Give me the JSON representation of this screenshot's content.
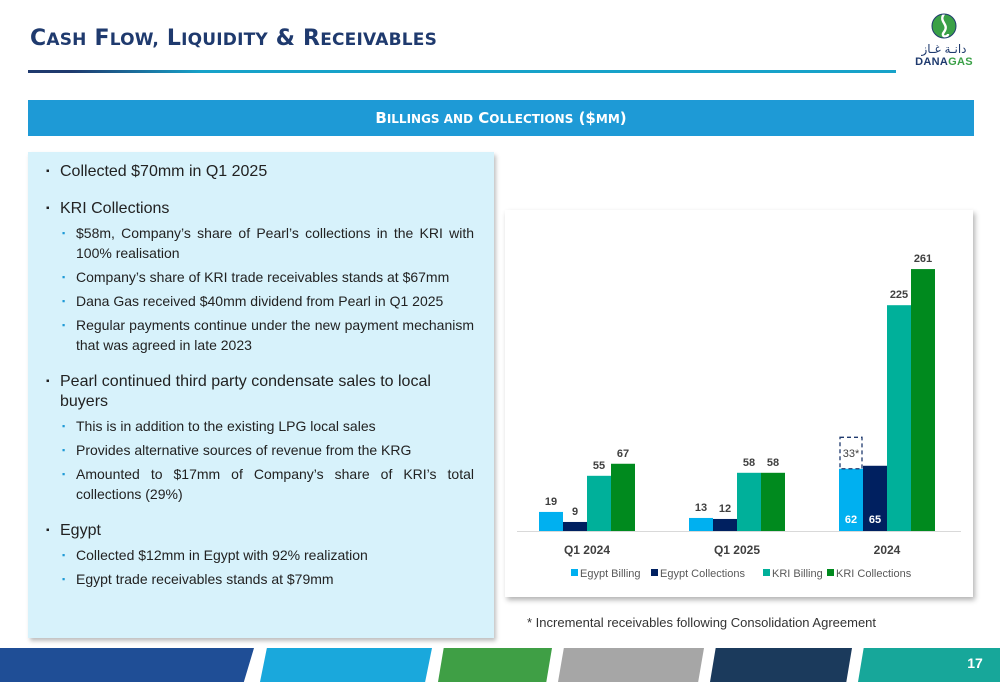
{
  "header": {
    "title_words": [
      {
        "cap": "C",
        "rest": "ASH"
      },
      {
        "cap": "F",
        "rest": "LOW,"
      },
      {
        "cap": "L",
        "rest": "IQUIDITY"
      },
      {
        "cap": "&",
        "rest": ""
      },
      {
        "cap": "R",
        "rest": "ECEIVABLES"
      }
    ],
    "logo_arabic": "دانـة غـاز",
    "logo_latin_1": "DANA",
    "logo_latin_2": "GAS"
  },
  "banner": {
    "cap1": "B",
    "rest1": "ILLINGS AND",
    "cap2": "C",
    "rest2": "OLLECTIONS",
    "paren": "($",
    "rest3": "MM",
    "close": ")"
  },
  "notes": {
    "item1": "Collected $70mm in Q1 2025",
    "kri_heading": "KRI Collections",
    "kri_points": [
      "$58m, Company’s share of Pearl’s collections in the KRI with 100% realisation",
      "Company’s share of KRI trade receivables stands at $67mm",
      "Dana Gas received $40mm dividend from Pearl in Q1 2025",
      "Regular payments continue under the new payment mechanism that was agreed in late 2023"
    ],
    "pearl_heading": "Pearl continued third party condensate sales to local buyers",
    "pearl_points": [
      "This is in addition to the existing LPG local sales",
      "Provides alternative sources of revenue from the KRG",
      "Amounted to $17mm of Company’s share of KRI’s total collections (29%)"
    ],
    "egypt_heading": "Egypt",
    "egypt_points": [
      "Collected $12mm in Egypt with 92% realization",
      "Egypt trade receivables stands at $79mm"
    ]
  },
  "chart_data": {
    "type": "bar",
    "categories": [
      "Q1 2024",
      "Q1 2025",
      "2024"
    ],
    "series": [
      {
        "name": "Egypt Billing",
        "values": [
          19,
          13,
          62
        ],
        "color": "#00b0f0"
      },
      {
        "name": "Egypt Collections",
        "values": [
          9,
          12,
          65
        ],
        "color": "#002060"
      },
      {
        "name": "KRI Billing",
        "values": [
          55,
          58,
          225
        ],
        "color": "#00b09a"
      },
      {
        "name": "KRI Collections",
        "values": [
          67,
          58,
          261
        ],
        "color": "#008a1e"
      }
    ],
    "annotation": {
      "category": "2024",
      "series": "Egypt Billing",
      "label": "33*",
      "value": 33,
      "style": "dashed-box"
    },
    "ylim": [
      0,
      280
    ],
    "grid": false,
    "legend": "bottom",
    "data_labels": [
      "19",
      "9",
      "55",
      "67",
      "13",
      "12",
      "58",
      "58",
      "62",
      "65",
      "225",
      "261"
    ]
  },
  "footnote": "* Incremental receivables following Consolidation Agreement",
  "footer": {
    "page_number": "17",
    "colors": [
      "#1f4e96",
      "#1aa8dc",
      "#3f9f45",
      "#a6a6a6",
      "#1b3a5c",
      "#17a79a"
    ]
  }
}
